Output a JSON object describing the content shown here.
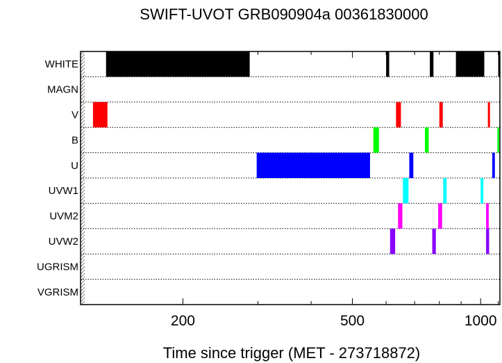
{
  "chart_data": {
    "type": "timeline",
    "title": "SWIFT-UVOT GRB090904a 00361830000",
    "xlabel": "Time since trigger (MET - 273718872)",
    "xscale": "log",
    "xlim": [
      115,
      1110
    ],
    "xticks": [
      {
        "value": 200,
        "label": "200"
      },
      {
        "value": 500,
        "label": "500"
      },
      {
        "value": 1000,
        "label": "1000"
      }
    ],
    "filters": [
      {
        "name": "WHITE",
        "color": "#000000",
        "segments": [
          [
            132,
            287
          ],
          [
            600,
            610
          ],
          [
            760,
            775
          ],
          [
            875,
            1020
          ],
          [
            1100,
            1105
          ]
        ]
      },
      {
        "name": "MAGN",
        "color": "#000000",
        "segments": []
      },
      {
        "name": "V",
        "color": "#ff0000",
        "segments": [
          [
            123,
            133
          ],
          [
            633,
            650
          ],
          [
            800,
            815
          ],
          [
            1040,
            1052
          ]
        ]
      },
      {
        "name": "B",
        "color": "#00ff00",
        "segments": [
          [
            560,
            577
          ],
          [
            740,
            755
          ],
          [
            1095,
            1105
          ]
        ]
      },
      {
        "name": "U",
        "color": "#0000ff",
        "segments": [
          [
            298,
            550
          ],
          [
            680,
            695
          ],
          [
            1065,
            1080
          ]
        ]
      },
      {
        "name": "UVW1",
        "color": "#00ffff",
        "segments": [
          [
            657,
            677
          ],
          [
            817,
            832
          ],
          [
            1000,
            1015
          ]
        ]
      },
      {
        "name": "UVM2",
        "color": "#ff00ff",
        "segments": [
          [
            640,
            655
          ],
          [
            795,
            812
          ],
          [
            1030,
            1045
          ]
        ]
      },
      {
        "name": "UVW2",
        "color": "#8800ff",
        "segments": [
          [
            613,
            630
          ],
          [
            770,
            785
          ],
          [
            1030,
            1047
          ]
        ]
      },
      {
        "name": "UGRISM",
        "color": "#000000",
        "segments": []
      },
      {
        "name": "VGRISM",
        "color": "#000000",
        "segments": []
      }
    ],
    "grid": "dotted row separators",
    "legend": "none"
  }
}
